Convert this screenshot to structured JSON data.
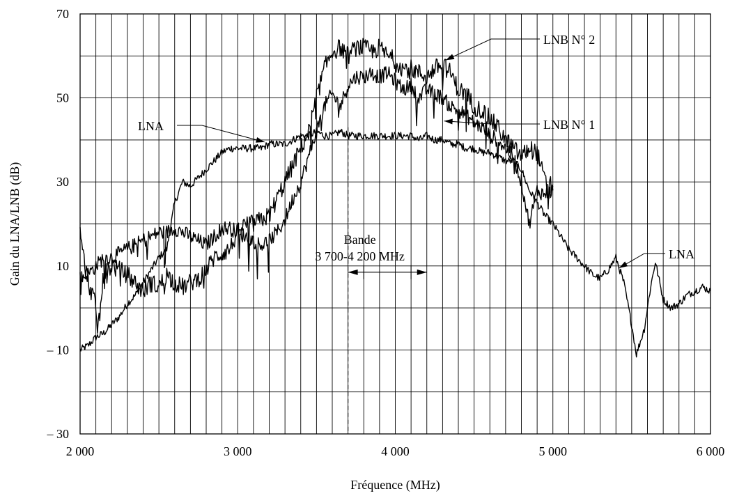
{
  "chart_data": {
    "type": "line",
    "title": "",
    "xlabel": "Fréquence (MHz)",
    "ylabel": "Gain du LNA/LNB (dB)",
    "xlim": [
      2000,
      6000
    ],
    "ylim": [
      -30,
      70
    ],
    "grid": true,
    "x_ticks": [
      {
        "value": 2000,
        "label": "2 000"
      },
      {
        "value": 3000,
        "label": "3 000"
      },
      {
        "value": 4000,
        "label": "4 000"
      },
      {
        "value": 5000,
        "label": "5 000"
      },
      {
        "value": 6000,
        "label": "6 000"
      }
    ],
    "y_ticks": [
      {
        "value": 70,
        "label": "70"
      },
      {
        "value": 50,
        "label": "50"
      },
      {
        "value": 30,
        "label": "30"
      },
      {
        "value": 10,
        "label": "10"
      },
      {
        "value": -10,
        "label": "– 10"
      },
      {
        "value": -30,
        "label": "– 30"
      }
    ],
    "series": [
      {
        "name": "LNA",
        "color": "#000000",
        "points": [
          [
            2000,
            -10
          ],
          [
            2050,
            -9
          ],
          [
            2100,
            -7
          ],
          [
            2150,
            -6
          ],
          [
            2200,
            -4
          ],
          [
            2250,
            -2
          ],
          [
            2300,
            1
          ],
          [
            2350,
            3
          ],
          [
            2400,
            6
          ],
          [
            2450,
            9
          ],
          [
            2500,
            12
          ],
          [
            2550,
            14
          ],
          [
            2600,
            25
          ],
          [
            2650,
            30
          ],
          [
            2700,
            29
          ],
          [
            2750,
            31
          ],
          [
            2800,
            33
          ],
          [
            2850,
            35
          ],
          [
            2900,
            37
          ],
          [
            2950,
            38
          ],
          [
            3000,
            38
          ],
          [
            3050,
            38
          ],
          [
            3100,
            38
          ],
          [
            3150,
            38
          ],
          [
            3200,
            39
          ],
          [
            3250,
            39
          ],
          [
            3300,
            39
          ],
          [
            3350,
            40
          ],
          [
            3400,
            41
          ],
          [
            3450,
            41
          ],
          [
            3500,
            42
          ],
          [
            3550,
            41
          ],
          [
            3600,
            41
          ],
          [
            3650,
            42
          ],
          [
            3700,
            41
          ],
          [
            3750,
            41
          ],
          [
            3800,
            41
          ],
          [
            3850,
            41
          ],
          [
            3900,
            41
          ],
          [
            3950,
            41
          ],
          [
            4000,
            41
          ],
          [
            4050,
            41
          ],
          [
            4100,
            41
          ],
          [
            4150,
            40
          ],
          [
            4200,
            41
          ],
          [
            4250,
            40
          ],
          [
            4300,
            40
          ],
          [
            4350,
            39
          ],
          [
            4400,
            39
          ],
          [
            4450,
            38
          ],
          [
            4500,
            38
          ],
          [
            4550,
            37
          ],
          [
            4600,
            37
          ],
          [
            4650,
            36
          ],
          [
            4700,
            35
          ],
          [
            4750,
            35
          ],
          [
            4800,
            33
          ],
          [
            4850,
            28
          ],
          [
            4900,
            25
          ],
          [
            4950,
            22
          ],
          [
            5000,
            20
          ],
          [
            5050,
            17
          ],
          [
            5100,
            14
          ],
          [
            5150,
            12
          ],
          [
            5200,
            10
          ],
          [
            5250,
            8
          ],
          [
            5300,
            7
          ],
          [
            5350,
            9
          ],
          [
            5400,
            12
          ],
          [
            5450,
            6
          ],
          [
            5500,
            -4
          ],
          [
            5530,
            -11
          ],
          [
            5580,
            -5
          ],
          [
            5620,
            5
          ],
          [
            5650,
            11
          ],
          [
            5700,
            2
          ],
          [
            5750,
            0
          ],
          [
            5800,
            1
          ],
          [
            5850,
            3
          ],
          [
            5900,
            4
          ],
          [
            5950,
            5
          ],
          [
            6000,
            4
          ]
        ]
      },
      {
        "name": "LNB N° 1",
        "color": "#000000",
        "points": [
          [
            2000,
            7
          ],
          [
            2050,
            8
          ],
          [
            2100,
            10
          ],
          [
            2150,
            12
          ],
          [
            2200,
            12
          ],
          [
            2250,
            13
          ],
          [
            2300,
            14
          ],
          [
            2350,
            15
          ],
          [
            2400,
            16
          ],
          [
            2450,
            17
          ],
          [
            2500,
            18
          ],
          [
            2550,
            18
          ],
          [
            2600,
            19
          ],
          [
            2650,
            18
          ],
          [
            2700,
            17
          ],
          [
            2750,
            16
          ],
          [
            2800,
            15
          ],
          [
            2850,
            17
          ],
          [
            2900,
            19
          ],
          [
            2950,
            19
          ],
          [
            3000,
            18
          ],
          [
            3050,
            17
          ],
          [
            3100,
            16
          ],
          [
            3150,
            15
          ],
          [
            3200,
            16
          ],
          [
            3250,
            18
          ],
          [
            3300,
            21
          ],
          [
            3350,
            26
          ],
          [
            3400,
            30
          ],
          [
            3450,
            36
          ],
          [
            3500,
            42
          ],
          [
            3550,
            48
          ],
          [
            3600,
            51
          ],
          [
            3650,
            48
          ],
          [
            3700,
            53
          ],
          [
            3750,
            55
          ],
          [
            3800,
            55
          ],
          [
            3850,
            56
          ],
          [
            3900,
            55
          ],
          [
            3950,
            56
          ],
          [
            4000,
            54
          ],
          [
            4050,
            52
          ],
          [
            4100,
            53
          ],
          [
            4150,
            50
          ],
          [
            4200,
            52
          ],
          [
            4250,
            51
          ],
          [
            4300,
            50
          ],
          [
            4350,
            48
          ],
          [
            4400,
            47
          ],
          [
            4450,
            46
          ],
          [
            4500,
            44
          ],
          [
            4550,
            43
          ],
          [
            4600,
            41
          ],
          [
            4650,
            40
          ],
          [
            4700,
            38
          ],
          [
            4750,
            36
          ],
          [
            4800,
            30
          ],
          [
            4850,
            20
          ],
          [
            4900,
            28
          ],
          [
            4950,
            27
          ],
          [
            5000,
            28
          ]
        ]
      },
      {
        "name": "LNB N° 2",
        "color": "#000000",
        "points": [
          [
            2000,
            18
          ],
          [
            2030,
            10
          ],
          [
            2060,
            5
          ],
          [
            2090,
            2
          ],
          [
            2110,
            -5
          ],
          [
            2130,
            0
          ],
          [
            2150,
            8
          ],
          [
            2200,
            10
          ],
          [
            2250,
            9
          ],
          [
            2300,
            8
          ],
          [
            2350,
            6
          ],
          [
            2400,
            4
          ],
          [
            2450,
            6
          ],
          [
            2500,
            5
          ],
          [
            2550,
            8
          ],
          [
            2600,
            6
          ],
          [
            2650,
            5
          ],
          [
            2700,
            6
          ],
          [
            2750,
            7
          ],
          [
            2800,
            9
          ],
          [
            2850,
            12
          ],
          [
            2900,
            13
          ],
          [
            2950,
            14
          ],
          [
            3000,
            18
          ],
          [
            3050,
            20
          ],
          [
            3100,
            20
          ],
          [
            3150,
            21
          ],
          [
            3200,
            22
          ],
          [
            3250,
            26
          ],
          [
            3300,
            30
          ],
          [
            3350,
            34
          ],
          [
            3400,
            38
          ],
          [
            3450,
            42
          ],
          [
            3500,
            50
          ],
          [
            3550,
            57
          ],
          [
            3600,
            61
          ],
          [
            3650,
            62
          ],
          [
            3700,
            60
          ],
          [
            3750,
            62
          ],
          [
            3800,
            62
          ],
          [
            3850,
            61
          ],
          [
            3900,
            62
          ],
          [
            3950,
            60
          ],
          [
            4000,
            59
          ],
          [
            4050,
            57
          ],
          [
            4100,
            57
          ],
          [
            4150,
            56
          ],
          [
            4200,
            55
          ],
          [
            4250,
            57
          ],
          [
            4300,
            58
          ],
          [
            4350,
            56
          ],
          [
            4400,
            52
          ],
          [
            4450,
            51
          ],
          [
            4500,
            48
          ],
          [
            4550,
            47
          ],
          [
            4600,
            45
          ],
          [
            4650,
            43
          ],
          [
            4700,
            40
          ],
          [
            4750,
            38
          ],
          [
            4800,
            36
          ],
          [
            4850,
            38
          ],
          [
            4900,
            37
          ],
          [
            4950,
            30
          ],
          [
            5000,
            29
          ]
        ]
      }
    ],
    "annotations": {
      "lna_label_1": "LNA",
      "lna_label_2": "LNA",
      "lnb1_label": "LNB N° 1",
      "lnb2_label": "LNB N° 2",
      "band_label_1": "Bande",
      "band_label_2": "3 700-4 200 MHz",
      "band_start": 3700,
      "band_end": 4200
    }
  }
}
